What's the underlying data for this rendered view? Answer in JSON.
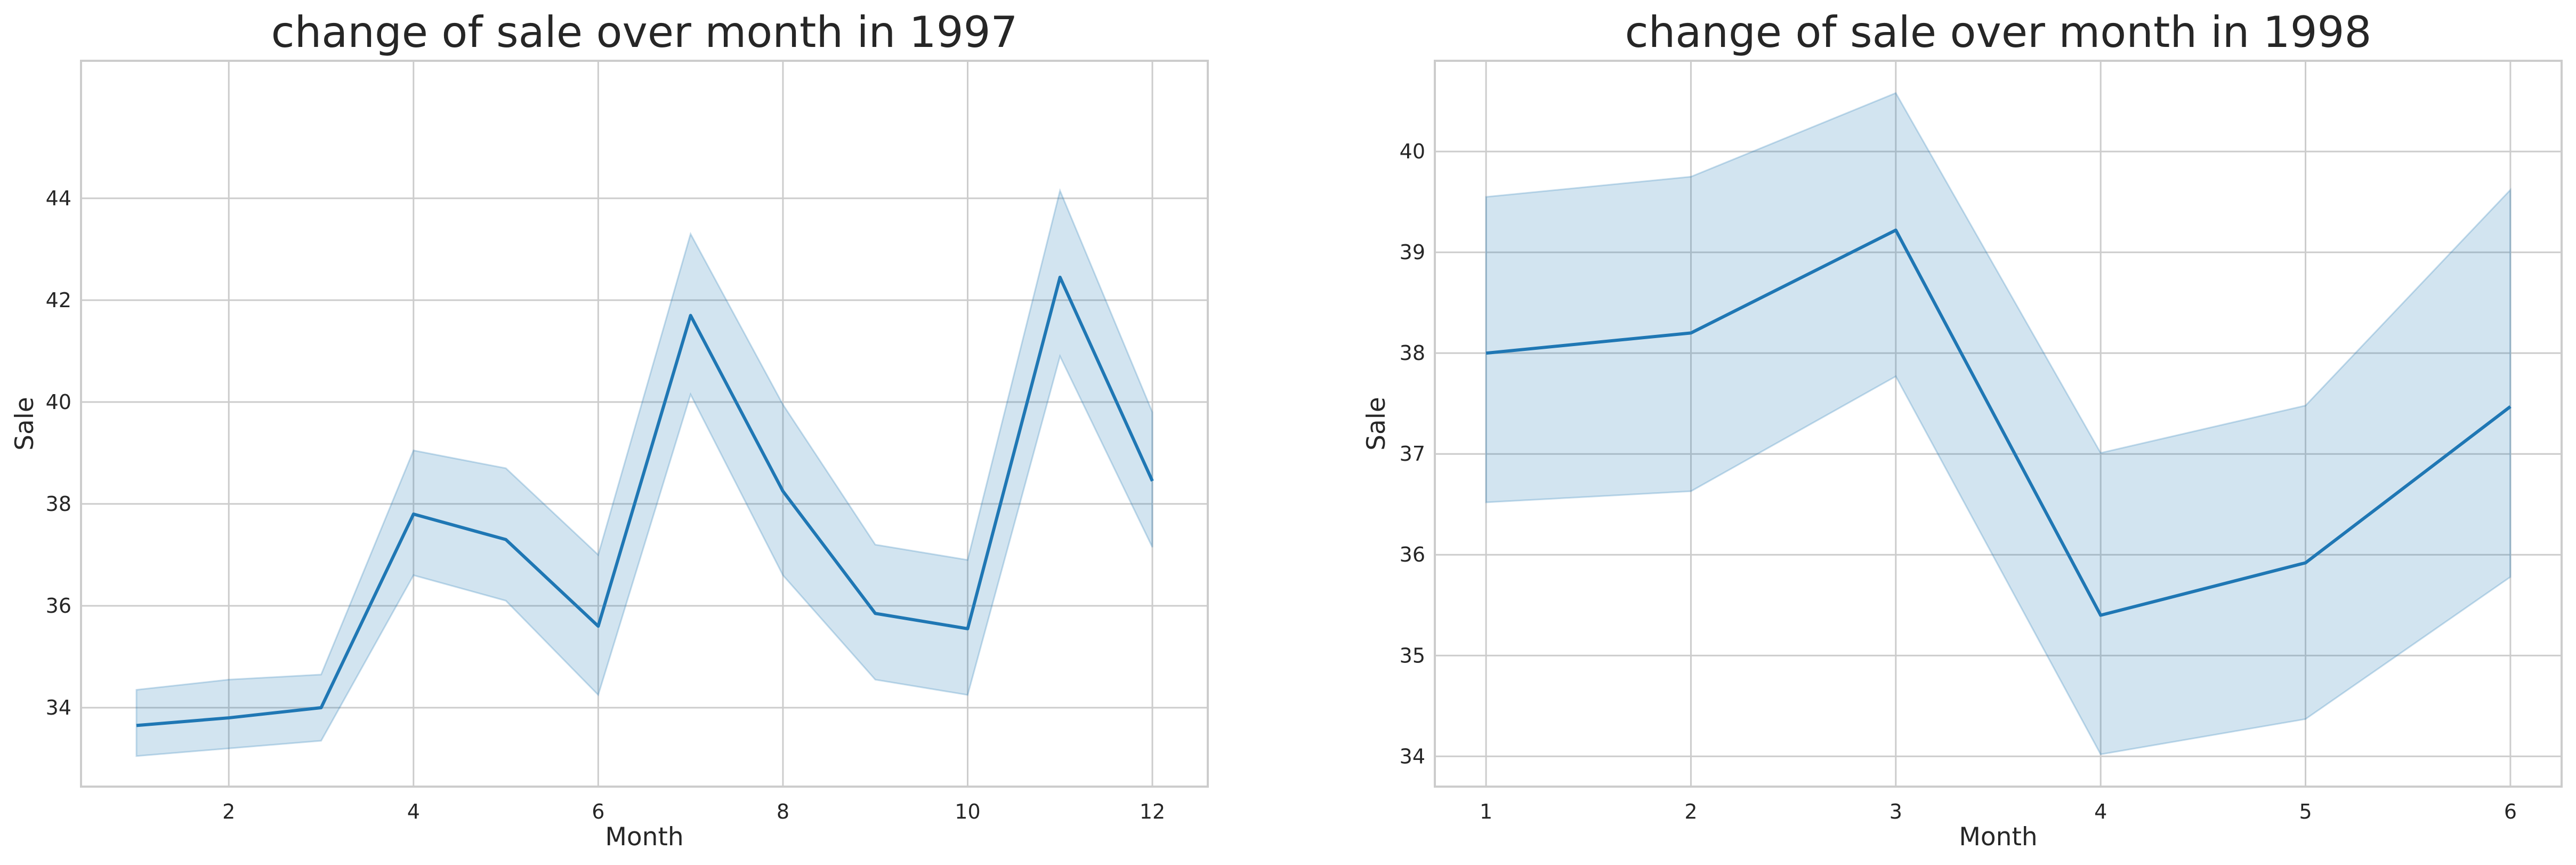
{
  "chart_data": [
    {
      "type": "line",
      "title": "change of sale over month in 1997",
      "xlabel": "Month",
      "ylabel": "Sale",
      "xlim": [
        0.4,
        12.6
      ],
      "ylim": [
        32.45,
        46.7
      ],
      "xticks": [
        2,
        4,
        6,
        8,
        10,
        12
      ],
      "yticks": [
        34,
        36,
        38,
        40,
        42,
        44
      ],
      "grid": true,
      "color": "#1f77b4",
      "series": [
        {
          "x": [
            1,
            2,
            3,
            4,
            5,
            6,
            7,
            8,
            9,
            10,
            11,
            12
          ],
          "y": [
            33.65,
            33.8,
            34.0,
            37.8,
            37.3,
            35.6,
            41.7,
            38.25,
            35.85,
            35.55,
            42.45,
            38.45
          ],
          "ci_low": [
            33.05,
            33.2,
            33.35,
            36.6,
            36.1,
            34.25,
            40.15,
            36.6,
            34.55,
            34.25,
            40.9,
            37.15
          ],
          "ci_high": [
            34.35,
            34.55,
            34.65,
            39.05,
            38.7,
            37.0,
            43.3,
            39.95,
            37.2,
            36.9,
            44.15,
            39.8
          ]
        }
      ]
    },
    {
      "type": "line",
      "title": "change of sale over month in 1998",
      "xlabel": "Month",
      "ylabel": "Sale",
      "xlim": [
        0.75,
        6.25
      ],
      "ylim": [
        33.7,
        40.9
      ],
      "xticks": [
        1,
        2,
        3,
        4,
        5,
        6
      ],
      "yticks": [
        34,
        35,
        36,
        37,
        38,
        39,
        40
      ],
      "grid": true,
      "color": "#1f77b4",
      "series": [
        {
          "x": [
            1,
            2,
            3,
            4,
            5,
            6
          ],
          "y": [
            38.0,
            38.2,
            39.22,
            35.4,
            35.92,
            37.47
          ],
          "ci_low": [
            36.52,
            36.63,
            37.77,
            34.02,
            34.37,
            35.78
          ],
          "ci_high": [
            39.55,
            39.75,
            40.58,
            37.01,
            37.48,
            39.62
          ]
        }
      ]
    }
  ]
}
